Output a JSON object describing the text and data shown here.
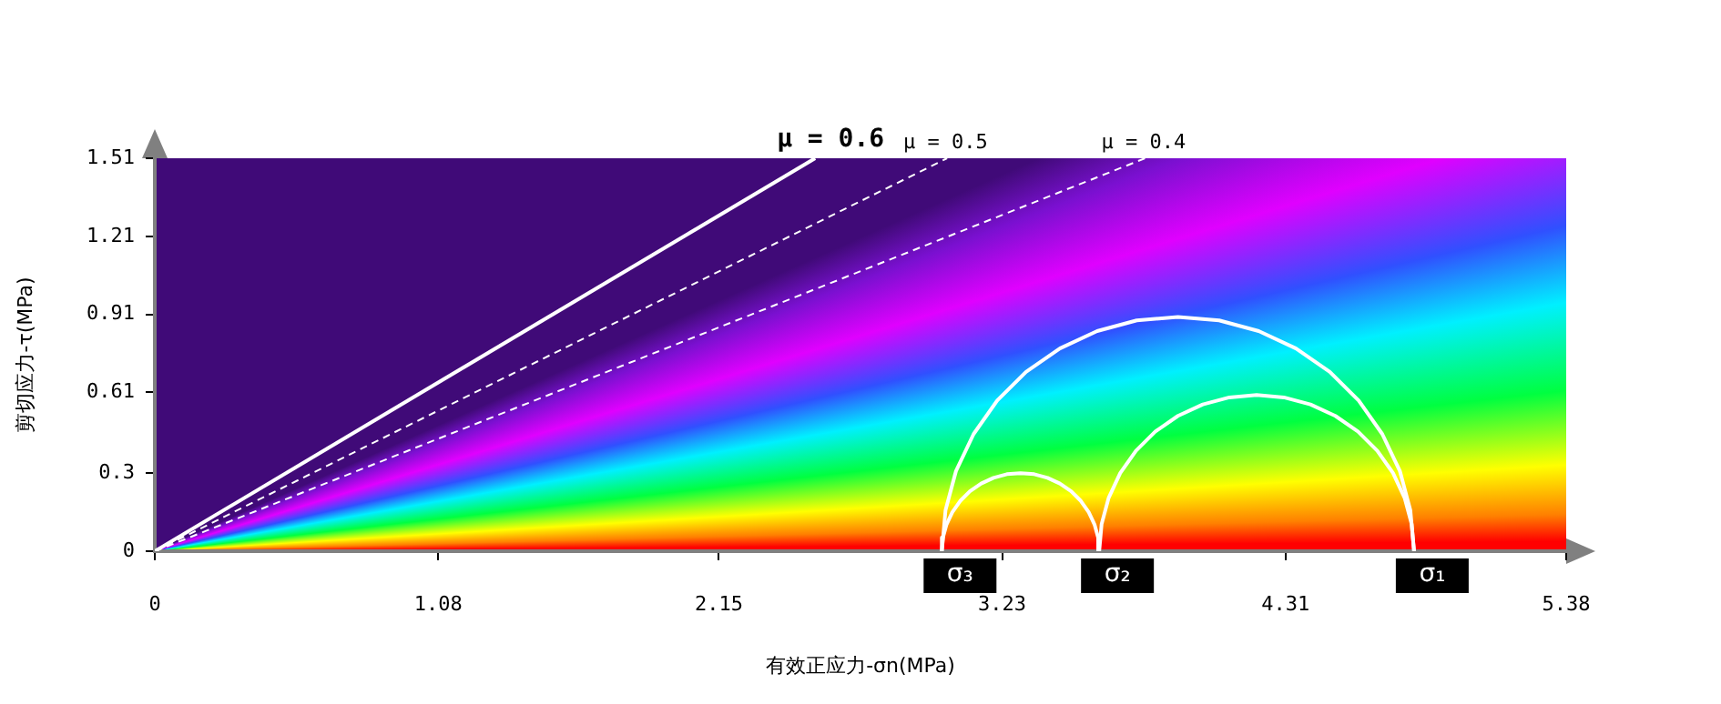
{
  "chart_data": {
    "type": "line",
    "xlabel": "有效正应力-σn(MPa)",
    "ylabel": "剪切应力-τ(MPa)",
    "xlim": [
      0,
      5.38
    ],
    "ylim": [
      0,
      1.51
    ],
    "xticks": [
      0,
      1.08,
      2.15,
      3.23,
      4.31,
      5.38
    ],
    "yticks": [
      0,
      0.3,
      0.61,
      0.91,
      1.21,
      1.51
    ],
    "grid": false,
    "legend": false,
    "marker": "none",
    "series": [
      {
        "name": "μ = 0.6",
        "color": "#ffffff",
        "line_style": "solid",
        "x": [
          0,
          2.517
        ],
        "values": [
          0,
          1.51
        ]
      },
      {
        "name": "μ = 0.5",
        "color": "#ffffff",
        "line_style": "dashed",
        "x": [
          0,
          3.02
        ],
        "values": [
          0,
          1.51
        ]
      },
      {
        "name": "μ = 0.4",
        "color": "#ffffff",
        "line_style": "dashed",
        "x": [
          0,
          3.775
        ],
        "values": [
          0,
          1.51
        ]
      },
      {
        "color": "#ffffff",
        "line_style": "solid",
        "x": [
          4.8,
          4.786,
          4.746,
          4.679,
          4.589,
          4.479,
          4.35,
          4.208,
          4.057,
          3.9,
          3.743,
          3.592,
          3.45,
          3.321,
          3.211,
          3.121,
          3.054,
          3.014,
          3.0
        ],
        "values": [
          0,
          0.157,
          0.308,
          0.45,
          0.579,
          0.689,
          0.779,
          0.846,
          0.887,
          0.9,
          0.887,
          0.846,
          0.779,
          0.689,
          0.579,
          0.45,
          0.308,
          0.157,
          0
        ]
      },
      {
        "color": "#ffffff",
        "line_style": "solid",
        "x": [
          4.8,
          4.791,
          4.764,
          4.72,
          4.66,
          4.586,
          4.5,
          4.405,
          4.304,
          4.2,
          4.096,
          3.995,
          3.9,
          3.814,
          3.74,
          3.68,
          3.636,
          3.609,
          3.6
        ],
        "values": [
          0,
          0.104,
          0.205,
          0.3,
          0.386,
          0.46,
          0.52,
          0.564,
          0.591,
          0.6,
          0.591,
          0.564,
          0.52,
          0.46,
          0.386,
          0.3,
          0.205,
          0.104,
          0
        ]
      },
      {
        "color": "#ffffff",
        "line_style": "solid",
        "x": [
          3.6,
          3.596,
          3.582,
          3.56,
          3.53,
          3.493,
          3.45,
          3.403,
          3.352,
          3.3,
          3.248,
          3.197,
          3.15,
          3.107,
          3.07,
          3.04,
          3.018,
          3.004,
          3.0
        ],
        "values": [
          0,
          0.052,
          0.103,
          0.15,
          0.193,
          0.23,
          0.26,
          0.282,
          0.296,
          0.3,
          0.296,
          0.282,
          0.26,
          0.23,
          0.193,
          0.15,
          0.103,
          0.052,
          0
        ]
      }
    ],
    "annotations": [
      {
        "text": "σ₃",
        "x": 3.0,
        "y": 0
      },
      {
        "text": "σ₂",
        "x": 3.6,
        "y": 0
      },
      {
        "text": "σ₁",
        "x": 4.8,
        "y": 0
      }
    ]
  }
}
